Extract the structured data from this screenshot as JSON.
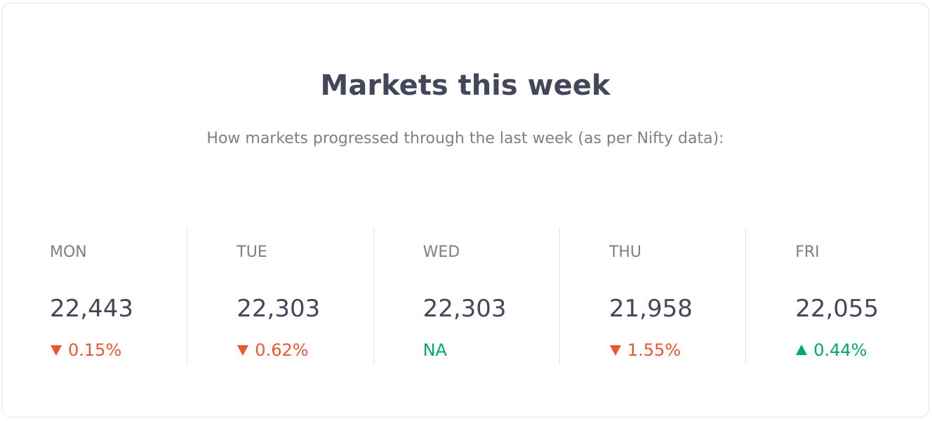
{
  "header": {
    "title": "Markets this week",
    "subtitle": "How markets progressed through the last week (as per Nifty data):"
  },
  "days": [
    {
      "day": "MON",
      "value": "22,443",
      "change": "0.15%",
      "trend": "down"
    },
    {
      "day": "TUE",
      "value": "22,303",
      "change": "0.62%",
      "trend": "down"
    },
    {
      "day": "WED",
      "value": "22,303",
      "change": "NA",
      "trend": "flat"
    },
    {
      "day": "THU",
      "value": "21,958",
      "change": "1.55%",
      "trend": "down"
    },
    {
      "day": "FRI",
      "value": "22,055",
      "change": "0.44%",
      "trend": "up"
    }
  ]
}
